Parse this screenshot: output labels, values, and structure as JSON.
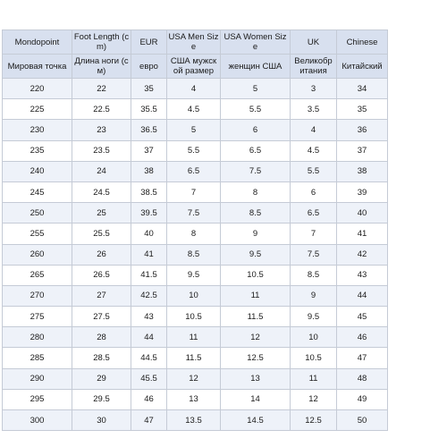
{
  "table": {
    "header_en": [
      "Mondopoint",
      "Foot Length (cm)",
      "EUR",
      "USA Men Size",
      "USA Women Size",
      "UK",
      "Chinese"
    ],
    "header_ru": [
      "Мировая точка",
      "Длина ноги (см)",
      "евро",
      "США мужск ой размер",
      "женщин США",
      "Великобр итания",
      "Китайский"
    ],
    "rows": [
      [
        "220",
        "22",
        "35",
        "4",
        "5",
        "3",
        "34"
      ],
      [
        "225",
        "22.5",
        "35.5",
        "4.5",
        "5.5",
        "3.5",
        "35"
      ],
      [
        "230",
        "23",
        "36.5",
        "5",
        "6",
        "4",
        "36"
      ],
      [
        "235",
        "23.5",
        "37",
        "5.5",
        "6.5",
        "4.5",
        "37"
      ],
      [
        "240",
        "24",
        "38",
        "6.5",
        "7.5",
        "5.5",
        "38"
      ],
      [
        "245",
        "24.5",
        "38.5",
        "7",
        "8",
        "6",
        "39"
      ],
      [
        "250",
        "25",
        "39.5",
        "7.5",
        "8.5",
        "6.5",
        "40"
      ],
      [
        "255",
        "25.5",
        "40",
        "8",
        "9",
        "7",
        "41"
      ],
      [
        "260",
        "26",
        "41",
        "8.5",
        "9.5",
        "7.5",
        "42"
      ],
      [
        "265",
        "26.5",
        "41.5",
        "9.5",
        "10.5",
        "8.5",
        "43"
      ],
      [
        "270",
        "27",
        "42.5",
        "10",
        "11",
        "9",
        "44"
      ],
      [
        "275",
        "27.5",
        "43",
        "10.5",
        "11.5",
        "9.5",
        "45"
      ],
      [
        "280",
        "28",
        "44",
        "11",
        "12",
        "10",
        "46"
      ],
      [
        "285",
        "28.5",
        "44.5",
        "11.5",
        "12.5",
        "10.5",
        "47"
      ],
      [
        "290",
        "29",
        "45.5",
        "12",
        "13",
        "11",
        "48"
      ],
      [
        "295",
        "29.5",
        "46",
        "13",
        "14",
        "12",
        "49"
      ],
      [
        "300",
        "30",
        "47",
        "13.5",
        "14.5",
        "12.5",
        "50"
      ]
    ]
  },
  "colors": {
    "header_bg": "#d8e0ef",
    "alt_row_bg": "#eef2f9",
    "border": "#c5cbd6"
  }
}
